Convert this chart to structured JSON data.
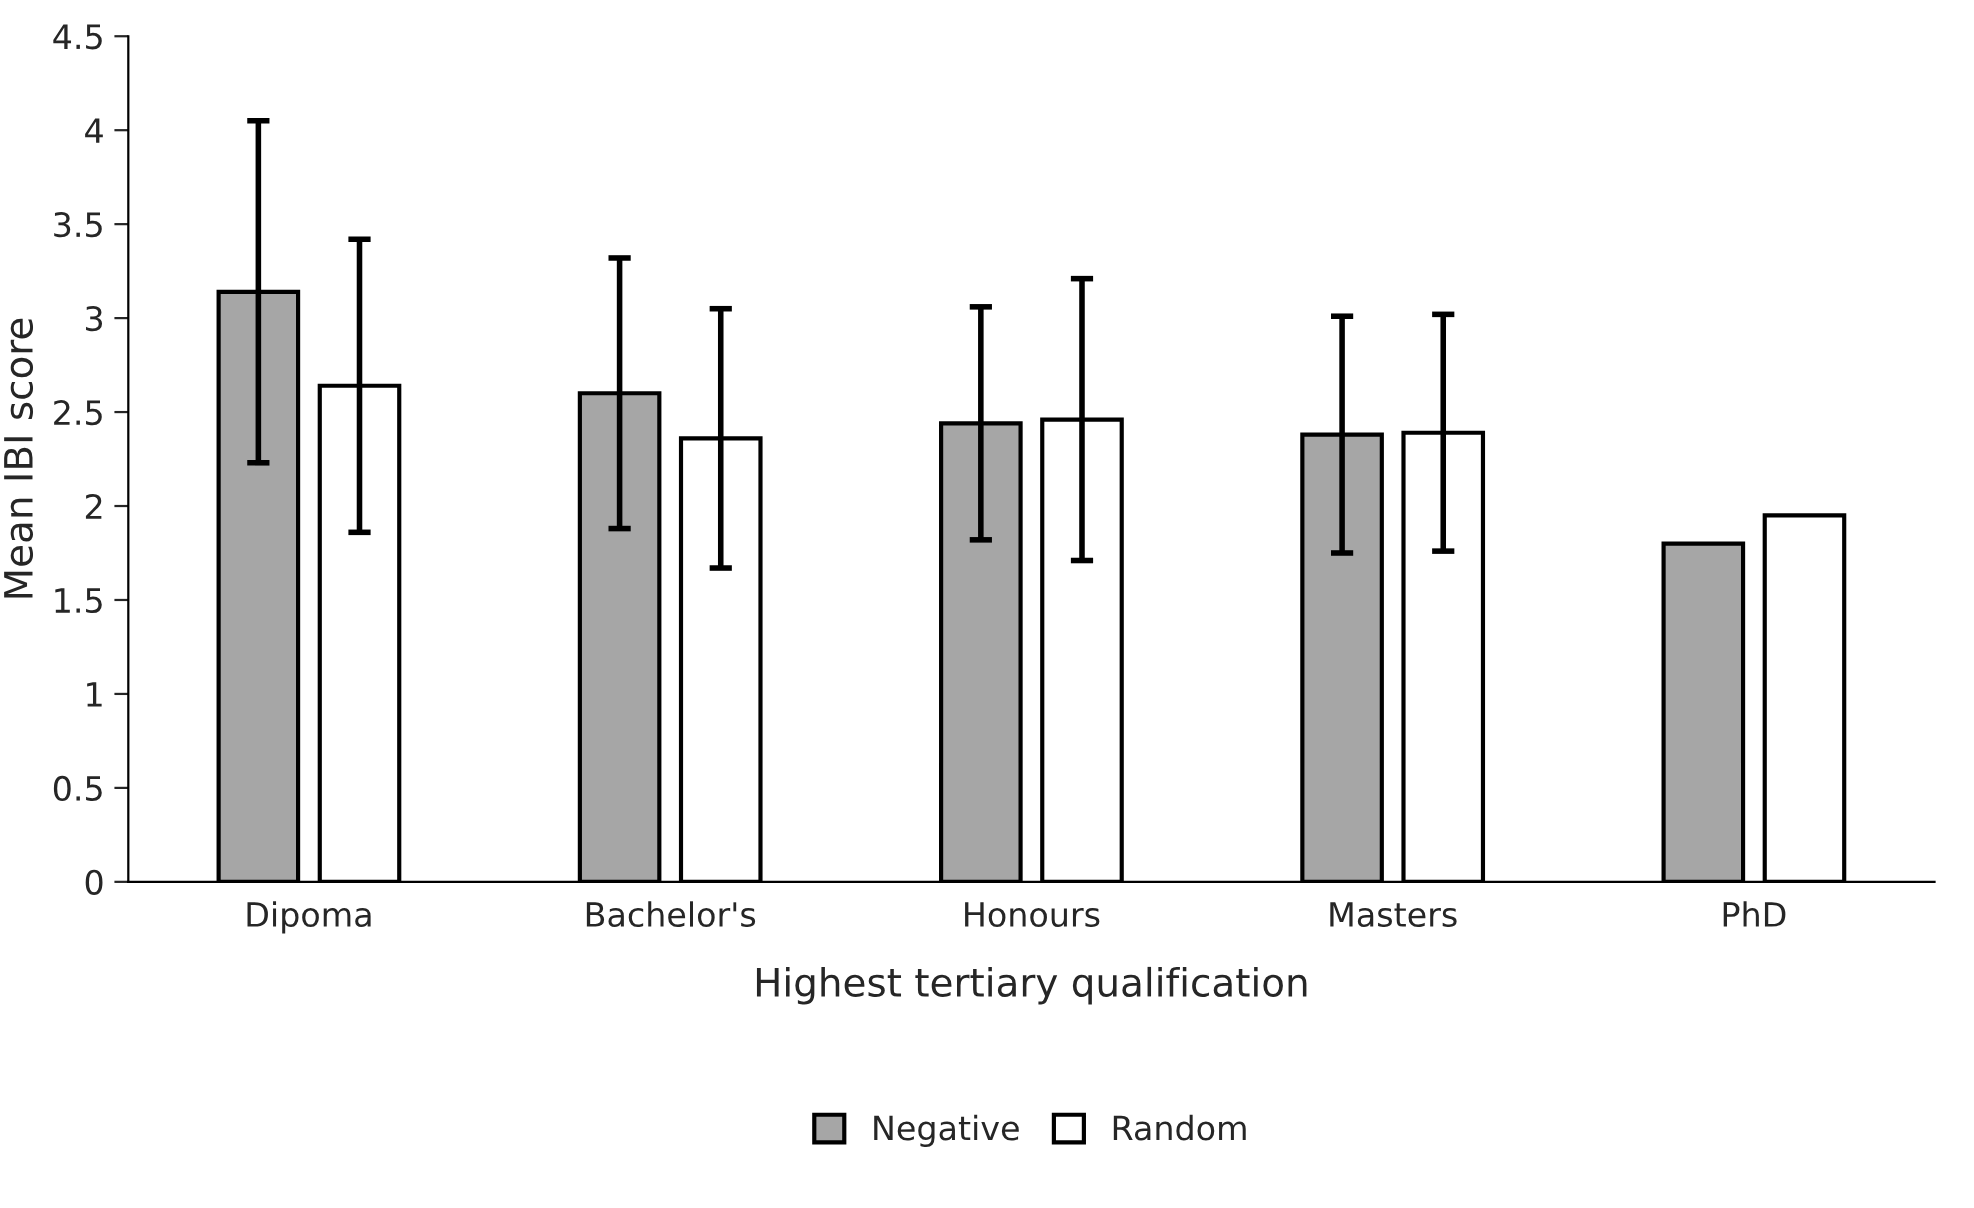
{
  "chart_data": {
    "type": "bar",
    "xlabel": "Highest tertiary qualification",
    "ylabel": "Mean IBI score",
    "categories": [
      "Dipoma",
      "Bachelor's",
      "Honours",
      "Masters",
      "PhD"
    ],
    "series": [
      {
        "name": "Negative",
        "color": "#a6a6a6",
        "values": [
          3.14,
          2.6,
          2.44,
          2.38,
          1.8
        ],
        "errors": [
          0.91,
          0.72,
          0.62,
          0.63,
          null
        ]
      },
      {
        "name": "Random",
        "color": "#ffffff",
        "values": [
          2.64,
          2.36,
          2.46,
          2.39,
          1.95
        ],
        "errors": [
          0.78,
          0.69,
          0.75,
          0.63,
          null
        ]
      }
    ],
    "ylim": [
      0,
      4.5
    ],
    "yticks": [
      0,
      0.5,
      1,
      1.5,
      2,
      2.5,
      3,
      3.5,
      4,
      4.5
    ],
    "grid": false,
    "legend": "bottom"
  }
}
